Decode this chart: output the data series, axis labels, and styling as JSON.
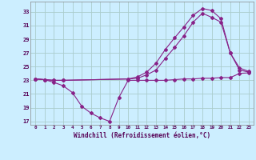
{
  "xlabel": "Windchill (Refroidissement éolien,°C)",
  "bg_color": "#cceeff",
  "grid_color": "#aacccc",
  "line_color": "#882288",
  "xlim": [
    -0.5,
    23.5
  ],
  "ylim": [
    16.5,
    34.5
  ],
  "yticks": [
    17,
    19,
    21,
    23,
    25,
    27,
    29,
    31,
    33
  ],
  "xticks": [
    0,
    1,
    2,
    3,
    4,
    5,
    6,
    7,
    8,
    9,
    10,
    11,
    12,
    13,
    14,
    15,
    16,
    17,
    18,
    19,
    20,
    21,
    22,
    23
  ],
  "series": [
    {
      "x": [
        0,
        1,
        2,
        3,
        4,
        5,
        6,
        7,
        8,
        9,
        10,
        11,
        12,
        13,
        14,
        15,
        16,
        17,
        18,
        19,
        20,
        21,
        22,
        23
      ],
      "y": [
        23.2,
        23.1,
        22.7,
        22.2,
        21.2,
        19.2,
        18.2,
        17.5,
        17.0,
        20.5,
        23.0,
        23.0,
        23.0,
        23.0,
        23.0,
        23.1,
        23.2,
        23.2,
        23.3,
        23.3,
        23.4,
        23.4,
        24.0,
        24.1
      ]
    },
    {
      "x": [
        0,
        1,
        2,
        3,
        10,
        11,
        12,
        13,
        14,
        15,
        16,
        17,
        18,
        19,
        20,
        21,
        22,
        23
      ],
      "y": [
        23.2,
        23.1,
        23.0,
        23.0,
        23.2,
        23.3,
        23.8,
        24.5,
        26.2,
        27.8,
        29.5,
        31.5,
        32.8,
        32.2,
        31.5,
        27.0,
        24.5,
        24.2
      ]
    },
    {
      "x": [
        0,
        1,
        2,
        3,
        10,
        11,
        12,
        13,
        14,
        15,
        16,
        17,
        18,
        19,
        20,
        21,
        22,
        23
      ],
      "y": [
        23.2,
        23.1,
        23.0,
        23.0,
        23.2,
        23.5,
        24.2,
        25.5,
        27.5,
        29.2,
        30.8,
        32.5,
        33.5,
        33.2,
        32.0,
        27.0,
        24.8,
        24.3
      ]
    }
  ]
}
